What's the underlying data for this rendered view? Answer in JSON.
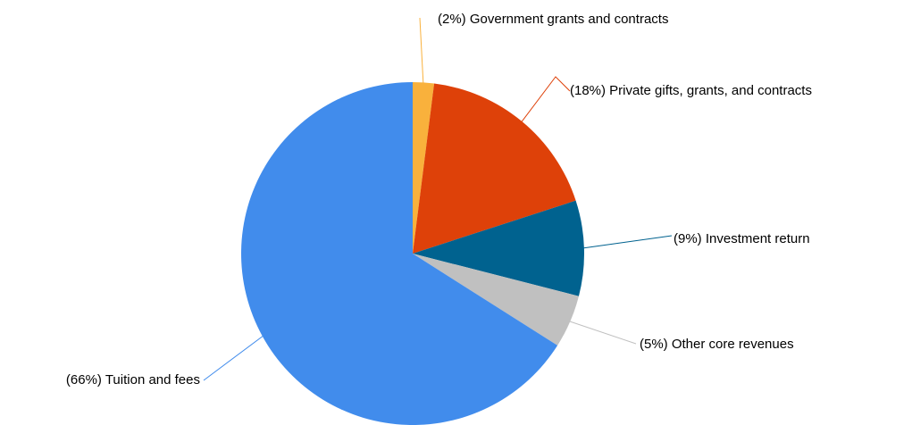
{
  "chart_data": {
    "type": "pie",
    "title": "",
    "start_angle_deg": -90,
    "direction": "clockwise",
    "slices": [
      {
        "name": "Government grants and contracts",
        "value": 2,
        "label": "(2%) Government grants and contracts",
        "color": "#F9B13C"
      },
      {
        "name": "Private gifts, grants, and contracts",
        "value": 18,
        "label": "(18%) Private gifts, grants, and contracts",
        "color": "#DE4109"
      },
      {
        "name": "Investment return",
        "value": 9,
        "label": "(9%) Investment return",
        "color": "#00628F"
      },
      {
        "name": "Other core revenues",
        "value": 5,
        "label": "(5%) Other core revenues",
        "color": "#C0C0C0"
      },
      {
        "name": "Tuition and fees",
        "value": 66,
        "label": "(66%) Tuition and fees",
        "color": "#418CEC"
      }
    ]
  }
}
